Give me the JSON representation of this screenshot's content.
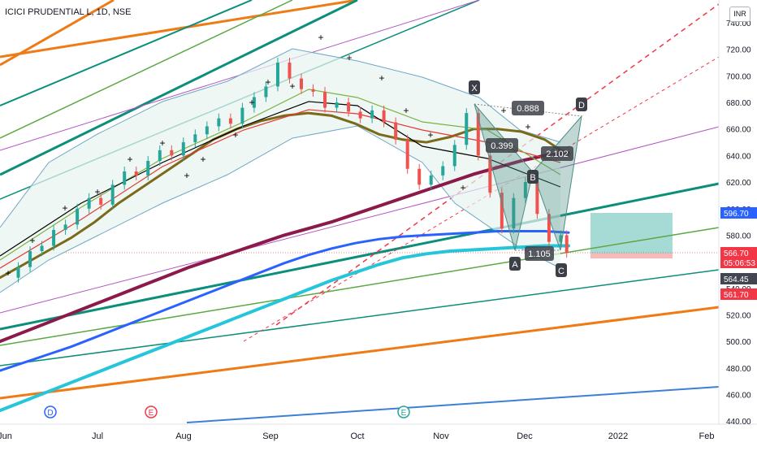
{
  "window": {
    "symbol_title": "ICICI PRUDENTIAL L, 1D, NSE",
    "currency": "INR"
  },
  "colors": {
    "background": "#ffffff",
    "axis_text": "#131722",
    "grid": "#f0f3fa",
    "candle_up": "#26a69a",
    "candle_down": "#ef5350",
    "bollinger": "#6fa7c4",
    "bollinger_fill": "#e8f3f1",
    "ma_200": "#8b1a4a",
    "ma_blue": "#2962ff",
    "ma_cyan": "#26c6da",
    "pattern_fill": "#4e8d85",
    "target_zone": "#5cbdb3",
    "stop_zone": "#f48b8b",
    "fib_teal": "#0b8f7b",
    "fib_green": "#5aa843",
    "fib_orange": "#ef7b16",
    "fib_blue": "#3d7fd8",
    "magenta": "#b455c3",
    "dashed_red": "#f23645"
  },
  "chart_data": {
    "type": "candlestick",
    "title": "ICICI PRUDENTIAL L, 1D, NSE",
    "ylabel": "INR",
    "ylim": [
      436,
      752
    ],
    "y_ticks": [
      "740.00",
      "720.00",
      "700.00",
      "680.00",
      "660.00",
      "640.00",
      "620.00",
      "600.00",
      "580.00",
      "560.00",
      "540.00",
      "520.00",
      "500.00",
      "480.00",
      "460.00",
      "440.00"
    ],
    "x_ticks": [
      "Jun",
      "Jul",
      "Aug",
      "Sep",
      "Oct",
      "Nov",
      "Dec",
      "2022",
      "Feb"
    ],
    "grid": false,
    "close_series": [
      {
        "x": 0,
        "y": 548
      },
      {
        "x": 4,
        "y": 556
      },
      {
        "x": 8,
        "y": 568
      },
      {
        "x": 12,
        "y": 572
      },
      {
        "x": 16,
        "y": 584
      },
      {
        "x": 20,
        "y": 588
      },
      {
        "x": 24,
        "y": 600
      },
      {
        "x": 28,
        "y": 608
      },
      {
        "x": 32,
        "y": 603
      },
      {
        "x": 36,
        "y": 618
      },
      {
        "x": 40,
        "y": 628
      },
      {
        "x": 44,
        "y": 625
      },
      {
        "x": 48,
        "y": 636
      },
      {
        "x": 52,
        "y": 644
      },
      {
        "x": 56,
        "y": 640
      },
      {
        "x": 60,
        "y": 650
      },
      {
        "x": 64,
        "y": 656
      },
      {
        "x": 68,
        "y": 662
      },
      {
        "x": 72,
        "y": 668
      },
      {
        "x": 76,
        "y": 664
      },
      {
        "x": 80,
        "y": 676
      },
      {
        "x": 84,
        "y": 684
      },
      {
        "x": 88,
        "y": 692
      },
      {
        "x": 92,
        "y": 710
      },
      {
        "x": 96,
        "y": 698
      },
      {
        "x": 100,
        "y": 690
      },
      {
        "x": 104,
        "y": 688
      },
      {
        "x": 108,
        "y": 676
      },
      {
        "x": 112,
        "y": 680
      },
      {
        "x": 116,
        "y": 673
      },
      {
        "x": 120,
        "y": 668
      },
      {
        "x": 124,
        "y": 674
      },
      {
        "x": 128,
        "y": 665
      },
      {
        "x": 132,
        "y": 652
      },
      {
        "x": 136,
        "y": 630
      },
      {
        "x": 140,
        "y": 618
      },
      {
        "x": 144,
        "y": 625
      },
      {
        "x": 148,
        "y": 632
      },
      {
        "x": 152,
        "y": 648
      },
      {
        "x": 156,
        "y": 672
      },
      {
        "x": 160,
        "y": 640
      },
      {
        "x": 164,
        "y": 612
      },
      {
        "x": 168,
        "y": 585
      },
      {
        "x": 172,
        "y": 608
      },
      {
        "x": 176,
        "y": 620
      },
      {
        "x": 180,
        "y": 596
      },
      {
        "x": 184,
        "y": 575
      },
      {
        "x": 188,
        "y": 580
      },
      {
        "x": 190,
        "y": 566.7
      }
    ],
    "series": [
      {
        "name": "",
        "values": [
          548,
          558,
          568,
          578,
          590,
          604,
          616,
          628,
          640,
          652,
          660,
          666,
          670,
          672,
          670,
          664,
          656,
          652,
          650,
          654,
          660,
          660,
          658,
          652,
          640
        ]
      },
      {
        "name": "",
        "values": [
          500,
          507,
          514,
          521,
          528,
          535,
          542,
          549,
          556,
          562,
          568,
          574,
          580,
          585,
          590,
          596,
          602,
          608,
          614,
          620,
          626,
          631,
          636,
          640,
          642
        ]
      },
      {
        "name": "",
        "values": [
          478,
          484,
          490,
          496,
          503,
          510,
          517,
          524,
          531,
          538,
          545,
          552,
          559,
          565,
          570,
          574,
          577,
          579,
          580,
          581,
          582,
          583,
          583,
          583,
          582
        ]
      },
      {
        "name": "",
        "values": [
          448,
          455,
          462,
          469,
          476,
          483,
          490,
          497,
          504,
          511,
          518,
          525,
          532,
          539,
          546,
          552,
          558,
          563,
          566,
          568,
          569,
          570,
          571,
          572,
          572
        ]
      }
    ],
    "patterns": {
      "points": [
        {
          "label": "X",
          "y": 680
        },
        {
          "label": "A",
          "y": 567
        },
        {
          "label": "B",
          "y": 640
        },
        {
          "label": "C",
          "y": 562
        },
        {
          "label": "D",
          "y": 668
        }
      ],
      "ratios": [
        "0.888",
        "0.399",
        "2.102",
        "1.105"
      ]
    },
    "price_labels": [
      {
        "value": "596.70",
        "color": "#2962ff"
      },
      {
        "value": "566.70",
        "sub": "05:06:53",
        "color": "#f23645"
      },
      {
        "value": "564.45",
        "color": "#434651"
      },
      {
        "value": "561.70",
        "color": "#f23645"
      }
    ],
    "event_markers": [
      {
        "label": "D",
        "color": "#2962ff"
      },
      {
        "label": "E",
        "color": "#f23645"
      },
      {
        "label": "E",
        "color": "#26a69a"
      }
    ]
  }
}
